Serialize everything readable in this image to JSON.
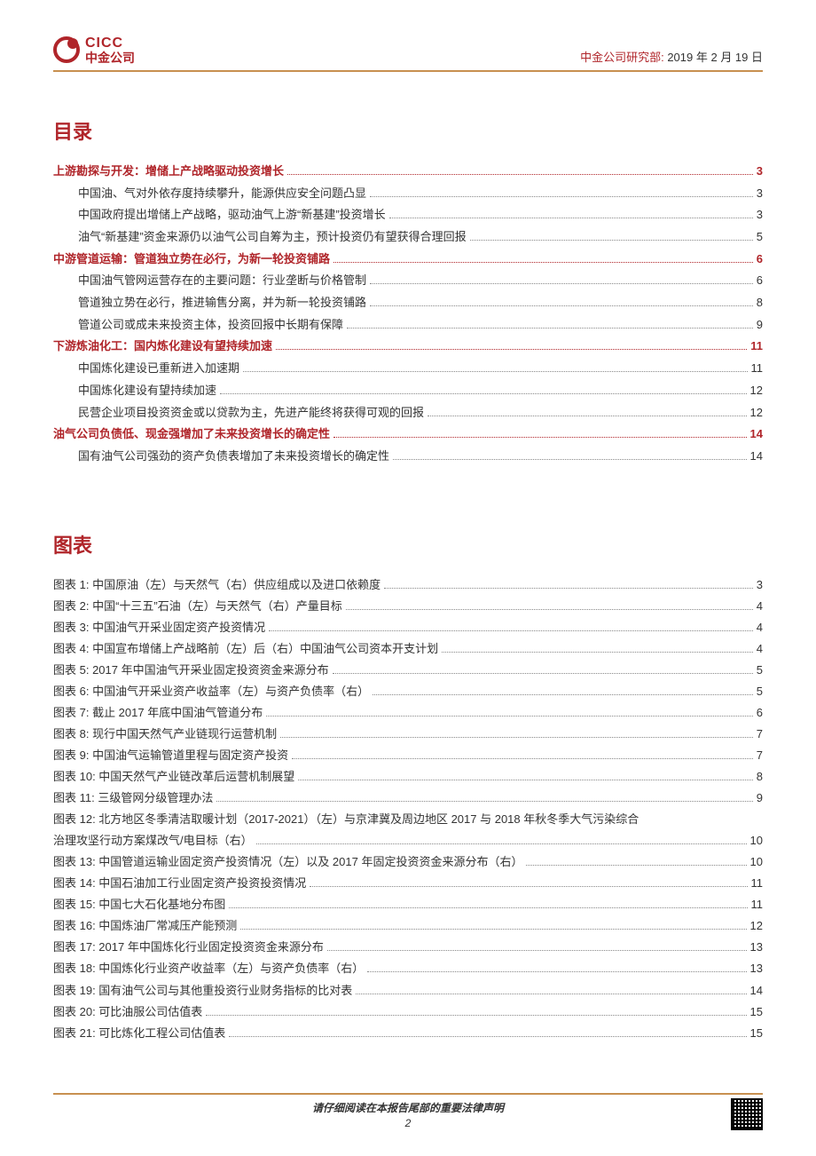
{
  "header": {
    "logo_en": "CICC",
    "logo_cn": "中金公司",
    "dept": "中金公司研究部:",
    "date": " 2019 年 2 月 19 日"
  },
  "toc_title": "目录",
  "toc": [
    {
      "level": 1,
      "label": "上游勘探与开发：增储上产战略驱动投资增长",
      "page": "3"
    },
    {
      "level": 2,
      "label": "中国油、气对外依存度持续攀升，能源供应安全问题凸显",
      "page": "3"
    },
    {
      "level": 2,
      "label": "中国政府提出增储上产战略，驱动油气上游“新基建”投资增长",
      "page": "3"
    },
    {
      "level": 2,
      "label": "油气“新基建”资金来源仍以油气公司自筹为主，预计投资仍有望获得合理回报",
      "page": "5"
    },
    {
      "level": 1,
      "label": "中游管道运输：管道独立势在必行，为新一轮投资铺路",
      "page": "6"
    },
    {
      "level": 2,
      "label": "中国油气管网运营存在的主要问题：行业垄断与价格管制",
      "page": "6"
    },
    {
      "level": 2,
      "label": "管道独立势在必行，推进输售分离，并为新一轮投资铺路",
      "page": "8"
    },
    {
      "level": 2,
      "label": "管道公司或成未来投资主体，投资回报中长期有保障",
      "page": "9"
    },
    {
      "level": 1,
      "label": "下游炼油化工：国内炼化建设有望持续加速",
      "page": "11"
    },
    {
      "level": 2,
      "label": "中国炼化建设已重新进入加速期",
      "page": "11"
    },
    {
      "level": 2,
      "label": "中国炼化建设有望持续加速",
      "page": "12"
    },
    {
      "level": 2,
      "label": "民营企业项目投资资金或以贷款为主，先进产能终将获得可观的回报",
      "page": "12"
    },
    {
      "level": 1,
      "label": "油气公司负债低、现金强增加了未来投资增长的确定性",
      "page": "14"
    },
    {
      "level": 2,
      "label": "国有油气公司强劲的资产负债表增加了未来投资增长的确定性",
      "page": "14"
    }
  ],
  "fig_title": "图表",
  "figures": [
    {
      "label": "图表 1: 中国原油（左）与天然气（右）供应组成以及进口依赖度",
      "page": "3"
    },
    {
      "label": "图表 2: 中国“十三五”石油（左）与天然气（右）产量目标",
      "page": "4"
    },
    {
      "label": "图表 3: 中国油气开采业固定资产投资情况",
      "page": "4"
    },
    {
      "label": "图表 4: 中国宣布增储上产战略前（左）后（右）中国油气公司资本开支计划",
      "page": "4"
    },
    {
      "label": "图表 5: 2017 年中国油气开采业固定投资资金来源分布",
      "page": "5"
    },
    {
      "label": "图表 6: 中国油气开采业资产收益率（左）与资产负债率（右）",
      "page": "5"
    },
    {
      "label": "图表 7: 截止 2017 年底中国油气管道分布",
      "page": "6"
    },
    {
      "label": "图表 8: 现行中国天然气产业链现行运营机制",
      "page": "7"
    },
    {
      "label": "图表 9: 中国油气运输管道里程与固定资产投资",
      "page": "7"
    },
    {
      "label": "图表 10: 中国天然气产业链改革后运营机制展望",
      "page": "8"
    },
    {
      "label": "图表 11: 三级管网分级管理办法",
      "page": "9"
    },
    {
      "label": "图表 12: 北方地区冬季清洁取暖计划（2017-2021）（左）与京津冀及周边地区 2017 与 2018 年秋冬季大气污染综合治理攻坚行动方案煤改气/电目标（右）",
      "page": "10",
      "multiline": true
    },
    {
      "label": "图表 13: 中国管道运输业固定资产投资情况（左）以及 2017 年固定投资资金来源分布（右）",
      "page": "10"
    },
    {
      "label": "图表 14: 中国石油加工行业固定资产投资投资情况",
      "page": "11"
    },
    {
      "label": "图表 15: 中国七大石化基地分布图",
      "page": "11"
    },
    {
      "label": "图表 16: 中国炼油厂常减压产能预测",
      "page": "12"
    },
    {
      "label": "图表 17: 2017 年中国炼化行业固定投资资金来源分布",
      "page": "13"
    },
    {
      "label": "图表 18: 中国炼化行业资产收益率（左）与资产负债率（右）",
      "page": "13"
    },
    {
      "label": "图表 19: 国有油气公司与其他重投资行业财务指标的比对表",
      "page": "14"
    },
    {
      "label": "图表 20: 可比油服公司估值表",
      "page": "15"
    },
    {
      "label": "图表 21: 可比炼化工程公司估值表",
      "page": "15"
    }
  ],
  "footer": {
    "text": "请仔细阅读在本报告尾部的重要法律声明",
    "page_num": "2"
  }
}
